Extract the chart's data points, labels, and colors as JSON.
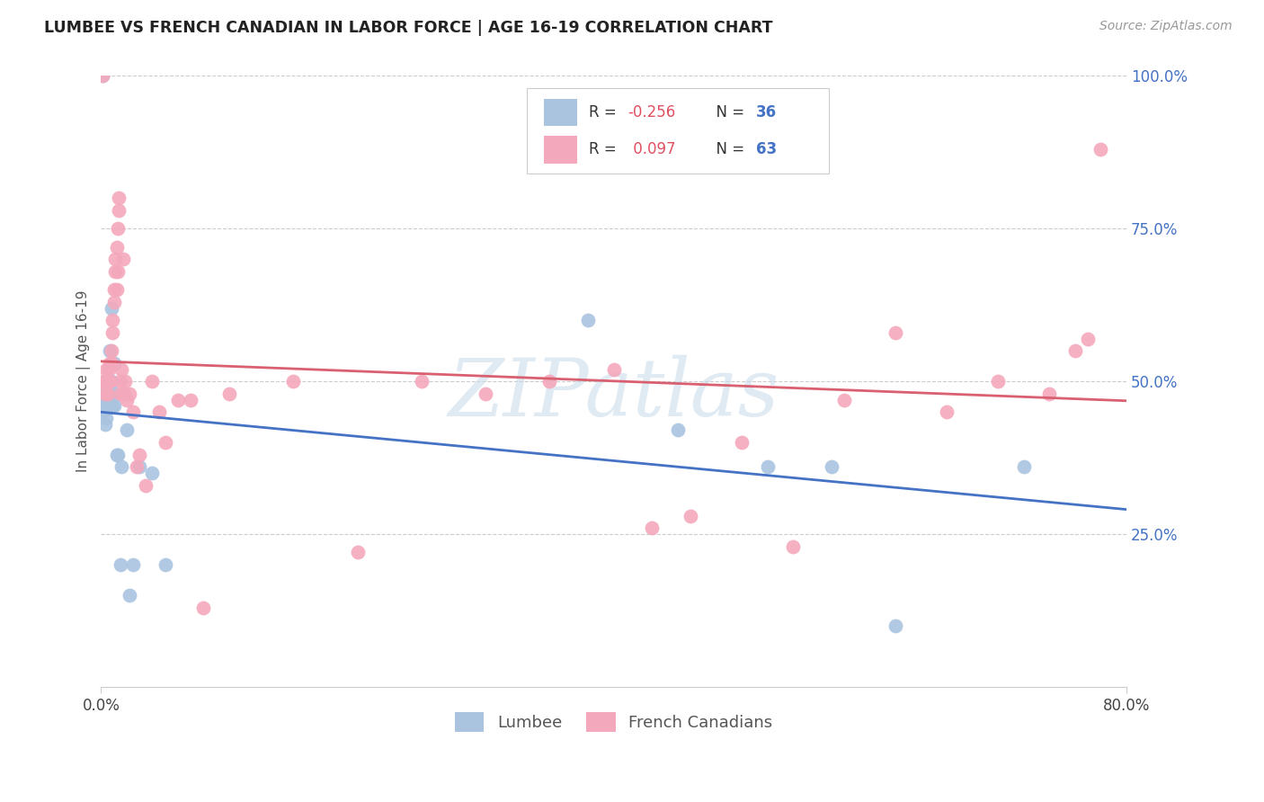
{
  "title": "LUMBEE VS FRENCH CANADIAN IN LABOR FORCE | AGE 16-19 CORRELATION CHART",
  "source": "Source: ZipAtlas.com",
  "ylabel_label": "In Labor Force | Age 16-19",
  "legend_labels": [
    "Lumbee",
    "French Canadians"
  ],
  "lumbee_color": "#aac4e0",
  "french_color": "#f4a8bc",
  "lumbee_line_color": "#4472c4",
  "french_line_color": "#d96070",
  "lumbee_R": -0.256,
  "lumbee_N": 36,
  "french_R": 0.097,
  "french_N": 63,
  "R_color": "#e05060",
  "N_color": "#4472c4",
  "watermark": "ZIPatlas",
  "watermark_color": "#c8daea",
  "grid_color": "#cccccc",
  "background": "#ffffff",
  "xlim": [
    0.0,
    0.8
  ],
  "ylim": [
    0.0,
    1.0
  ],
  "xticks": [
    0.0,
    0.8
  ],
  "xticklabels": [
    "0.0%",
    "80.0%"
  ],
  "yticks": [
    0.25,
    0.5,
    0.75,
    1.0
  ],
  "yticklabels": [
    "25.0%",
    "50.0%",
    "75.0%",
    "100.0%"
  ],
  "lumbee_x": [
    0.001,
    0.002,
    0.002,
    0.003,
    0.003,
    0.003,
    0.004,
    0.004,
    0.005,
    0.005,
    0.006,
    0.006,
    0.007,
    0.007,
    0.008,
    0.008,
    0.009,
    0.01,
    0.01,
    0.011,
    0.012,
    0.013,
    0.015,
    0.016,
    0.02,
    0.022,
    0.025,
    0.03,
    0.04,
    0.05,
    0.38,
    0.45,
    0.52,
    0.57,
    0.62,
    0.72
  ],
  "lumbee_y": [
    1.0,
    0.47,
    0.45,
    0.48,
    0.46,
    0.43,
    0.5,
    0.44,
    0.49,
    0.47,
    0.5,
    0.48,
    0.5,
    0.55,
    0.62,
    0.5,
    0.46,
    0.53,
    0.46,
    0.48,
    0.38,
    0.38,
    0.2,
    0.36,
    0.42,
    0.15,
    0.2,
    0.36,
    0.35,
    0.2,
    0.6,
    0.42,
    0.36,
    0.36,
    0.1,
    0.36
  ],
  "french_x": [
    0.001,
    0.002,
    0.003,
    0.003,
    0.004,
    0.004,
    0.005,
    0.005,
    0.006,
    0.006,
    0.007,
    0.007,
    0.008,
    0.008,
    0.009,
    0.009,
    0.01,
    0.01,
    0.011,
    0.011,
    0.012,
    0.012,
    0.013,
    0.013,
    0.014,
    0.014,
    0.015,
    0.015,
    0.016,
    0.017,
    0.018,
    0.019,
    0.02,
    0.022,
    0.025,
    0.028,
    0.03,
    0.035,
    0.04,
    0.045,
    0.05,
    0.06,
    0.07,
    0.08,
    0.1,
    0.15,
    0.2,
    0.25,
    0.3,
    0.35,
    0.4,
    0.43,
    0.46,
    0.5,
    0.54,
    0.58,
    0.62,
    0.66,
    0.7,
    0.74,
    0.76,
    0.77,
    0.78
  ],
  "french_y": [
    1.0,
    0.5,
    0.5,
    0.48,
    0.5,
    0.52,
    0.5,
    0.48,
    0.5,
    0.52,
    0.5,
    0.53,
    0.55,
    0.53,
    0.58,
    0.6,
    0.63,
    0.65,
    0.68,
    0.7,
    0.72,
    0.65,
    0.68,
    0.75,
    0.78,
    0.8,
    0.48,
    0.5,
    0.52,
    0.7,
    0.48,
    0.5,
    0.47,
    0.48,
    0.45,
    0.36,
    0.38,
    0.33,
    0.5,
    0.45,
    0.4,
    0.47,
    0.47,
    0.13,
    0.48,
    0.5,
    0.22,
    0.5,
    0.48,
    0.5,
    0.52,
    0.26,
    0.28,
    0.4,
    0.23,
    0.47,
    0.58,
    0.45,
    0.5,
    0.48,
    0.55,
    0.57,
    0.88
  ]
}
